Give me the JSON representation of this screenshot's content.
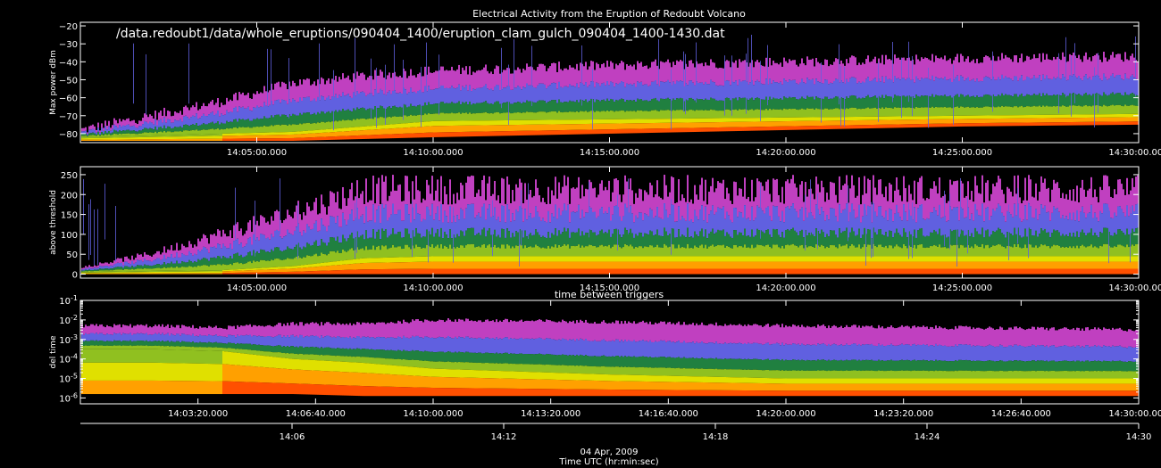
{
  "figure": {
    "title": "Electrical Activity from the Eruption of Redoubt Volcano",
    "file_label": "/data.redoubt1/data/whole_eruptions/090404_1400/eruption_clam_gulch_090404_1400-1430.dat",
    "date_label": "04 Apr, 2009",
    "bottom_xlabel": "Time UTC (hr:min:sec)",
    "bottom_axis_ticks": [
      "14:06",
      "14:12",
      "14:18",
      "14:24",
      "14:30"
    ],
    "colors": {
      "bg": "#000000",
      "fg": "#ffffff",
      "scale": [
        "#7a1fa0",
        "#c040c0",
        "#6060e0",
        "#208040",
        "#90c020",
        "#e0e000",
        "#ffa000",
        "#ff5000",
        "#c02020"
      ]
    }
  },
  "chart_data": [
    {
      "type": "heatmap",
      "title": "",
      "ylabel": "Max power dBm",
      "xlabel": "",
      "x_ticks": [
        "14:05:00.000",
        "14:10:00.000",
        "14:15:00.000",
        "14:20:00.000",
        "14:25:00.000",
        "14:30:00.000"
      ],
      "x_range": [
        "14:00:00",
        "14:30:00"
      ],
      "y_ticks": [
        "-20",
        "-30",
        "-40",
        "-50",
        "-60",
        "-70",
        "-80"
      ],
      "ylim": [
        -85,
        -18
      ],
      "density_profile": {
        "time_min": [
          0,
          2,
          4,
          6,
          8,
          10,
          15,
          20,
          25,
          30
        ],
        "floor_dbm": [
          -84,
          -84,
          -84,
          -84,
          -83,
          -82,
          -80,
          -78,
          -76,
          -75
        ],
        "core_dbm": [
          -82,
          -81,
          -80,
          -79,
          -76,
          -73,
          -72,
          -71,
          -70,
          -69
        ],
        "top_dbm": [
          -78,
          -70,
          -62,
          -52,
          -48,
          -45,
          -42,
          -40,
          -38,
          -37
        ]
      }
    },
    {
      "type": "heatmap",
      "title": "",
      "ylabel": "above threshold",
      "xlabel": "",
      "x_ticks": [
        "14:05:00.000",
        "14:10:00.000",
        "14:15:00.000",
        "14:20:00.000",
        "14:25:00.000",
        "14:30:00.000"
      ],
      "x_range": [
        "14:00:00",
        "14:30:00"
      ],
      "y_ticks": [
        "0",
        "50",
        "100",
        "150",
        "200",
        "250"
      ],
      "ylim": [
        -10,
        270
      ],
      "density_profile": {
        "time_min": [
          0,
          2,
          4,
          6,
          8,
          10,
          15,
          20,
          25,
          30
        ],
        "core": [
          5,
          8,
          10,
          20,
          40,
          45,
          45,
          45,
          45,
          45
        ],
        "top": [
          20,
          60,
          120,
          180,
          250,
          250,
          250,
          250,
          250,
          250
        ]
      }
    },
    {
      "type": "heatmap",
      "title": "time between triggers",
      "ylabel": "del time",
      "xlabel": "",
      "x_ticks": [
        "14:03:20.000",
        "14:06:40.000",
        "14:10:00.000",
        "14:13:20.000",
        "14:16:40.000",
        "14:20:00.000",
        "14:23:20.000",
        "14:26:40.000",
        "14:30:00.000"
      ],
      "x_range": [
        "14:00:00",
        "14:30:00"
      ],
      "y_ticks": [
        "10^-1",
        "10^-2",
        "10^-3",
        "10^-4",
        "10^-5",
        "10^-6"
      ],
      "y_scale": "log",
      "ylim": [
        5e-07,
        0.1
      ],
      "density_profile": {
        "time_min": [
          0,
          2,
          4,
          6,
          8,
          10,
          15,
          20,
          25,
          30
        ],
        "core_log10": [
          -3.5,
          -3.5,
          -3.6,
          -4.0,
          -4.2,
          -4.5,
          -4.8,
          -5.0,
          -5.0,
          -5.0
        ],
        "top_log10": [
          -2.3,
          -2.3,
          -2.4,
          -2.2,
          -2.2,
          -2.0,
          -2.1,
          -2.3,
          -2.4,
          -2.5
        ],
        "bottom_log10": [
          -5.8,
          -5.8,
          -5.8,
          -5.8,
          -5.9,
          -5.9,
          -5.9,
          -5.9,
          -5.9,
          -5.9
        ]
      }
    }
  ]
}
